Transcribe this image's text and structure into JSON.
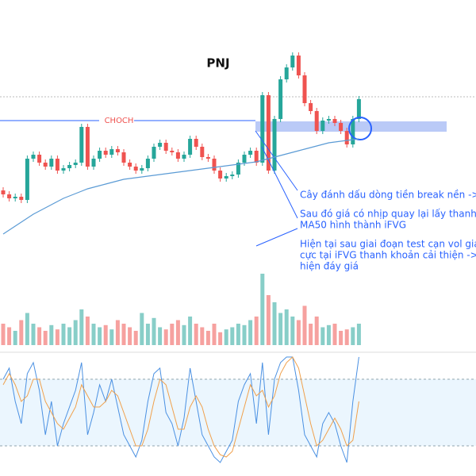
{
  "chart_data": {
    "type": "candlestick",
    "title": "PNJ",
    "annotations": {
      "choch": "CHOCH",
      "notes": [
        "Cây đánh dấu dòng tiền break nền -> tạo CHOCH",
        "Sau đó giá có nhịp quay lại lấy thanh khoản ở",
        "MA50 hình thành iFVG",
        "Hiện tại sau giai đoạn test cạn vol giá phản ứng tích",
        "cực tại iFVG thanh khoản cải thiện -> có tín hiệu xuất",
        "hiện đáy giá"
      ]
    },
    "ylim": [
      0,
      240
    ],
    "open": [
      60,
      55,
      50,
      52,
      48,
      100,
      105,
      95,
      90,
      100,
      85,
      88,
      92,
      95,
      140,
      90,
      100,
      110,
      105,
      112,
      108,
      95,
      90,
      85,
      88,
      100,
      115,
      120,
      110,
      108,
      100,
      105,
      125,
      115,
      102,
      100,
      85,
      75,
      78,
      80,
      95,
      105,
      110,
      95,
      180,
      85,
      150,
      200,
      215,
      230,
      205,
      170,
      160,
      135,
      148,
      150,
      145,
      135,
      118,
      150
    ],
    "high": [
      64,
      59,
      56,
      56,
      104,
      109,
      109,
      99,
      104,
      104,
      92,
      96,
      99,
      144,
      144,
      104,
      114,
      114,
      116,
      116,
      112,
      99,
      94,
      92,
      104,
      119,
      124,
      124,
      114,
      112,
      109,
      129,
      129,
      119,
      106,
      104,
      89,
      82,
      84,
      99,
      109,
      114,
      114,
      184,
      184,
      154,
      204,
      219,
      234,
      234,
      209,
      174,
      164,
      152,
      154,
      154,
      149,
      139,
      154,
      179
    ],
    "low": [
      51,
      46,
      46,
      44,
      44,
      96,
      91,
      86,
      86,
      81,
      81,
      84,
      88,
      91,
      86,
      86,
      96,
      101,
      101,
      104,
      91,
      86,
      81,
      81,
      84,
      96,
      111,
      106,
      104,
      96,
      96,
      101,
      111,
      98,
      96,
      81,
      71,
      71,
      74,
      76,
      91,
      101,
      91,
      91,
      81,
      81,
      146,
      196,
      211,
      201,
      166,
      156,
      131,
      131,
      144,
      141,
      131,
      114,
      114,
      146
    ],
    "close": [
      55,
      50,
      52,
      48,
      100,
      105,
      95,
      90,
      100,
      85,
      88,
      92,
      95,
      140,
      90,
      100,
      110,
      105,
      112,
      108,
      95,
      90,
      85,
      88,
      100,
      115,
      120,
      110,
      108,
      100,
      105,
      125,
      115,
      102,
      100,
      85,
      75,
      78,
      80,
      95,
      105,
      110,
      95,
      180,
      85,
      150,
      200,
      215,
      230,
      205,
      170,
      160,
      135,
      148,
      150,
      145,
      135,
      118,
      150,
      175
    ],
    "ma50": [
      5,
      10,
      15,
      20,
      25,
      30,
      34,
      38,
      42,
      46,
      50,
      53,
      56,
      59,
      62,
      64,
      66,
      68,
      70,
      72,
      74,
      75,
      76,
      77,
      78,
      79,
      80,
      81,
      82,
      83,
      84,
      85,
      86,
      87,
      88,
      89,
      90,
      91,
      92,
      93,
      94,
      95,
      96,
      98,
      100,
      102,
      104,
      106,
      108,
      110,
      112,
      114,
      116,
      118,
      120,
      121,
      122,
      123,
      124,
      125
    ],
    "ma_color": "#5b9bd5",
    "up_color": "#26a69a",
    "down_color": "#ef5350",
    "volume": [
      30,
      25,
      20,
      35,
      45,
      30,
      25,
      20,
      28,
      22,
      30,
      25,
      35,
      50,
      40,
      30,
      25,
      28,
      22,
      35,
      30,
      25,
      20,
      45,
      30,
      38,
      25,
      22,
      30,
      35,
      28,
      40,
      30,
      25,
      20,
      30,
      18,
      22,
      25,
      30,
      28,
      35,
      40,
      100,
      70,
      60,
      45,
      50,
      40,
      35,
      55,
      30,
      40,
      25,
      28,
      30,
      20,
      22,
      25,
      30
    ],
    "volume_lim": [
      0,
      100
    ],
    "stoch_lim": [
      0,
      100
    ],
    "stoch_band": [
      20,
      80
    ],
    "stoch_series": [
      {
        "color": "#4a90e2",
        "values": [
          80,
          90,
          60,
          40,
          85,
          95,
          70,
          30,
          60,
          20,
          40,
          55,
          70,
          95,
          30,
          50,
          75,
          60,
          80,
          55,
          30,
          20,
          10,
          25,
          60,
          85,
          90,
          50,
          40,
          20,
          45,
          90,
          60,
          30,
          20,
          10,
          5,
          15,
          25,
          60,
          75,
          85,
          40,
          95,
          30,
          80,
          95,
          100,
          100,
          70,
          30,
          20,
          10,
          40,
          50,
          40,
          20,
          5,
          60,
          100
        ]
      },
      {
        "color": "#f0a04b",
        "values": [
          75,
          85,
          75,
          60,
          65,
          80,
          80,
          60,
          50,
          40,
          35,
          45,
          55,
          75,
          65,
          55,
          55,
          60,
          70,
          65,
          50,
          35,
          20,
          20,
          35,
          60,
          80,
          75,
          55,
          35,
          35,
          55,
          65,
          55,
          35,
          20,
          12,
          10,
          15,
          35,
          55,
          75,
          65,
          70,
          55,
          65,
          85,
          95,
          100,
          90,
          65,
          40,
          20,
          25,
          35,
          45,
          35,
          20,
          25,
          60
        ]
      }
    ]
  }
}
